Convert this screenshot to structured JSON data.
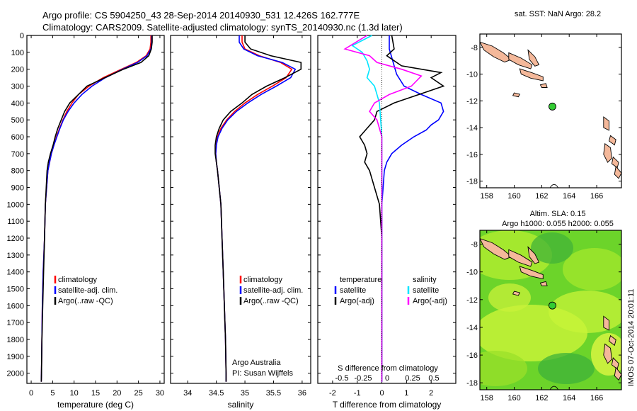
{
  "header": {
    "line1": "Argo profile: CS 5904250_43 28-Sep-2014 20140930_531 12.426S 162.777E",
    "line2": "Climatology: CARS2009. Satellite-adjusted climatology: synTS_20140930.nc (1.3d later)"
  },
  "colors": {
    "climatology": "#ff0000",
    "satellite": "#0000ff",
    "argo": "#000000",
    "sal_satellite": "#00e5ff",
    "sal_argo": "#ff00ff",
    "land": "#f4b89a",
    "float_marker": "#33cc33"
  },
  "stamp": "IMOS 07-Oct-2014 20:01:11",
  "chart_data": [
    {
      "type": "line",
      "panel": "temperature",
      "xlabel": "temperature (deg C)",
      "ylabel": "",
      "xlim": [
        -1,
        31
      ],
      "ylim": [
        2060,
        0
      ],
      "yticks": [
        0,
        100,
        200,
        300,
        400,
        500,
        600,
        700,
        800,
        900,
        1000,
        1100,
        1200,
        1300,
        1400,
        1500,
        1600,
        1700,
        1800,
        1900,
        2000
      ],
      "xticks": [
        0,
        5,
        10,
        15,
        20,
        25,
        30
      ],
      "legend": [
        "climatology",
        "satellite-adj. clim.",
        "Argo(..raw -QC)"
      ],
      "series": [
        {
          "name": "climatology",
          "color": "#ff0000",
          "x": [
            27.9,
            27.9,
            27.7,
            26.8,
            24.5,
            21.0,
            16.8,
            13.5,
            11.0,
            9.5,
            8.3,
            7.4,
            6.6,
            5.9,
            5.3,
            4.7,
            4.3,
            3.9,
            3.6,
            3.3,
            3.1,
            2.8,
            2.6,
            2.5,
            2.4,
            2.35
          ],
          "y": [
            0,
            40,
            80,
            120,
            160,
            200,
            250,
            300,
            350,
            400,
            450,
            500,
            550,
            600,
            650,
            700,
            750,
            800,
            900,
            1000,
            1200,
            1400,
            1600,
            1800,
            2000,
            2050
          ]
        },
        {
          "name": "satellite-adj. clim.",
          "color": "#0000ff",
          "x": [
            28.1,
            28.1,
            27.9,
            27.0,
            24.8,
            21.3,
            17.3,
            14.2,
            11.8,
            10.0,
            8.6,
            7.5,
            6.7,
            6.0,
            5.3,
            4.7,
            4.3,
            3.9,
            3.6,
            3.3,
            3.1,
            2.8,
            2.6,
            2.5,
            2.4,
            2.35
          ],
          "y": [
            0,
            40,
            80,
            120,
            160,
            200,
            250,
            300,
            350,
            400,
            450,
            500,
            550,
            600,
            650,
            700,
            750,
            800,
            900,
            1000,
            1200,
            1400,
            1600,
            1800,
            2000,
            2050
          ]
        },
        {
          "name": "Argo(..raw -QC)",
          "color": "#000000",
          "x": [
            28.2,
            28.2,
            28.0,
            27.4,
            25.6,
            21.5,
            17.2,
            13.0,
            11.0,
            9.0,
            7.8,
            7.0,
            6.2,
            5.6,
            5.1,
            4.5,
            4.0,
            3.7,
            3.5,
            3.3,
            3.1,
            2.9,
            2.7,
            2.5,
            2.4,
            2.35
          ],
          "y": [
            0,
            40,
            80,
            120,
            160,
            200,
            250,
            300,
            350,
            400,
            450,
            500,
            550,
            600,
            650,
            700,
            750,
            800,
            900,
            1000,
            1200,
            1400,
            1600,
            1800,
            2000,
            2050
          ]
        }
      ]
    },
    {
      "type": "line",
      "panel": "salinity",
      "xlabel": "salinity",
      "ylabel": "",
      "xlim": [
        33.7,
        36.15
      ],
      "ylim": [
        2060,
        0
      ],
      "xticks": [
        34,
        34.5,
        35,
        35.5,
        36
      ],
      "legend": [
        "climatology",
        "satellite-adj. clim.",
        "Argo(..raw -QC)"
      ],
      "annotations": [
        "Argo Australia",
        "PI: Susan Wijffels"
      ],
      "series": [
        {
          "name": "climatology",
          "color": "#ff0000",
          "x": [
            34.95,
            34.95,
            35.0,
            35.25,
            35.62,
            35.82,
            35.72,
            35.48,
            35.22,
            35.0,
            34.82,
            34.68,
            34.58,
            34.52,
            34.5,
            34.49,
            34.5,
            34.52,
            34.55,
            34.58,
            34.6,
            34.62,
            34.64,
            34.66,
            34.67,
            34.67
          ],
          "y": [
            0,
            40,
            80,
            120,
            160,
            200,
            250,
            300,
            350,
            400,
            450,
            500,
            550,
            600,
            650,
            700,
            750,
            800,
            900,
            1000,
            1200,
            1400,
            1600,
            1800,
            2000,
            2050
          ]
        },
        {
          "name": "satellite-adj. clim.",
          "color": "#0000ff",
          "x": [
            34.9,
            34.9,
            34.98,
            35.22,
            35.65,
            35.88,
            35.8,
            35.55,
            35.28,
            35.05,
            34.85,
            34.7,
            34.6,
            34.53,
            34.5,
            34.49,
            34.5,
            34.52,
            34.55,
            34.58,
            34.6,
            34.62,
            34.64,
            34.66,
            34.67,
            34.67
          ],
          "y": [
            0,
            40,
            80,
            120,
            160,
            200,
            250,
            300,
            350,
            400,
            450,
            500,
            550,
            600,
            650,
            700,
            750,
            800,
            900,
            1000,
            1200,
            1400,
            1600,
            1800,
            2000,
            2050
          ]
        },
        {
          "name": "Argo(..raw -QC)",
          "color": "#000000",
          "x": [
            35.0,
            35.0,
            35.1,
            35.45,
            35.98,
            35.98,
            35.7,
            35.38,
            35.12,
            34.95,
            34.75,
            34.62,
            34.55,
            34.5,
            34.48,
            34.48,
            34.5,
            34.52,
            34.55,
            34.58,
            34.6,
            34.62,
            34.64,
            34.66,
            34.67,
            34.67
          ],
          "y": [
            0,
            40,
            80,
            120,
            160,
            200,
            250,
            300,
            350,
            400,
            450,
            500,
            550,
            600,
            650,
            700,
            750,
            800,
            900,
            1000,
            1200,
            1400,
            1600,
            1800,
            2000,
            2050
          ]
        }
      ]
    },
    {
      "type": "line",
      "panel": "difference",
      "xlabel": "T difference from climatology",
      "top_label": "S difference from climatology",
      "xlim": [
        -2.6,
        3.0
      ],
      "ylim": [
        2060,
        0
      ],
      "xticks": [
        -2,
        -1,
        0,
        1,
        2
      ],
      "top_ticks": [
        "-0.5",
        "-0.25",
        "0",
        "0.25",
        "0.5"
      ],
      "legend_headers": [
        "temperature",
        "salinity"
      ],
      "legend": [
        "satellite",
        "Argo(-adj)",
        "satellite",
        "Argo(-adj)"
      ],
      "series": [
        {
          "name": "satellite",
          "group": "temperature",
          "color": "#0000ff",
          "x": [
            0.3,
            0.3,
            0.4,
            0.5,
            0.6,
            0.9,
            1.6,
            2.4,
            2.5,
            2.3,
            2.0,
            1.8,
            1.3,
            0.8,
            0.4,
            0.2,
            0.1,
            0.05,
            0.0,
            0.0,
            0.0,
            0.0
          ],
          "y": [
            0,
            80,
            130,
            180,
            230,
            300,
            350,
            400,
            450,
            500,
            530,
            560,
            600,
            650,
            700,
            750,
            800,
            900,
            1000,
            1200,
            1600,
            2050
          ]
        },
        {
          "name": "Argo(-adj)",
          "group": "temperature",
          "color": "#000000",
          "x": [
            0.4,
            0.5,
            0.2,
            0.8,
            2.4,
            2.0,
            2.5,
            1.5,
            0.5,
            -0.2,
            -0.3,
            -0.6,
            -0.9,
            -0.7,
            -0.6,
            -0.7,
            -0.5,
            -0.3,
            -0.1,
            0.0,
            0.0,
            0.0
          ],
          "y": [
            0,
            80,
            120,
            180,
            220,
            250,
            300,
            350,
            400,
            450,
            500,
            550,
            600,
            650,
            700,
            750,
            800,
            900,
            1000,
            1200,
            1600,
            2050
          ]
        },
        {
          "name": "satellite",
          "group": "salinity",
          "color": "#00e5ff",
          "x": [
            -0.4,
            -1.2,
            -0.8,
            -0.6,
            -0.5,
            -0.6,
            -0.3,
            -0.2,
            -0.1,
            -0.05,
            0.0,
            0.0,
            0.0,
            0.0,
            0.0
          ],
          "y": [
            0,
            60,
            100,
            150,
            200,
            250,
            300,
            350,
            400,
            500,
            600,
            700,
            900,
            1200,
            2050
          ]
        },
        {
          "name": "Argo(-adj)",
          "group": "salinity",
          "color": "#ff00ff",
          "x": [
            -0.6,
            -1.5,
            -0.5,
            -0.2,
            0.8,
            1.6,
            1.2,
            0.3,
            -0.3,
            -0.5,
            -0.2,
            0.0,
            0.0,
            0.0
          ],
          "y": [
            0,
            80,
            120,
            160,
            200,
            240,
            300,
            350,
            400,
            450,
            500,
            600,
            800,
            2050
          ]
        }
      ]
    },
    {
      "type": "scatter",
      "panel": "sst-map",
      "title": "sat. SST: NaN Argo: 28.2",
      "xlim": [
        157.5,
        167.8
      ],
      "ylim": [
        -18.5,
        -7.0
      ],
      "xticks": [
        158,
        160,
        162,
        164,
        166
      ],
      "yticks": [
        -8,
        -10,
        -12,
        -14,
        -16,
        -18
      ],
      "x": [
        162.777
      ],
      "y": [
        -12.426
      ]
    },
    {
      "type": "scatter",
      "panel": "sla-map",
      "title": "Altim. SLA: 0.15",
      "subtitle": "Argo h1000: 0.055 h2000: 0.055",
      "xlim": [
        157.5,
        167.8
      ],
      "ylim": [
        -18.5,
        -7.0
      ],
      "xticks": [
        158,
        160,
        162,
        164,
        166
      ],
      "yticks": [
        -8,
        -10,
        -12,
        -14,
        -16,
        -18
      ],
      "x": [
        162.777
      ],
      "y": [
        -12.426
      ]
    }
  ]
}
